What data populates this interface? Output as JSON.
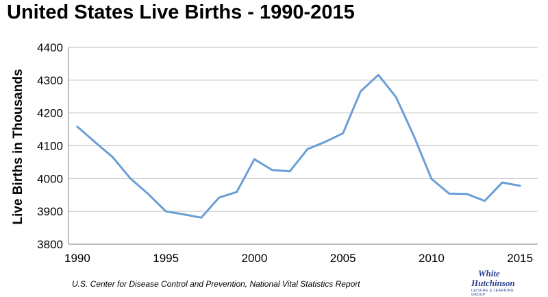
{
  "chart_data": {
    "type": "line",
    "title": "United States Live Births - 1990-2015",
    "ylabel": "Live Births in Thousands",
    "xlabel": "",
    "xlim": [
      1989.5,
      2016
    ],
    "ylim": [
      3800,
      4400
    ],
    "x_ticks": [
      1990,
      1995,
      2000,
      2005,
      2010,
      2015
    ],
    "y_ticks": [
      3800,
      3900,
      4000,
      4100,
      4200,
      4300,
      4400
    ],
    "grid": true,
    "line_color": "#6a9fd6",
    "series": [
      {
        "x": [
          1990,
          1991,
          1992,
          1993,
          1994,
          1995,
          1996,
          1997,
          1998,
          1999,
          2000,
          2001,
          2002,
          2003,
          2004,
          2005,
          2006,
          2007,
          2008,
          2009,
          2010,
          2011,
          2012,
          2013,
          2014,
          2015
        ],
        "values": [
          4158,
          4111,
          4065,
          4000,
          3953,
          3900,
          3891,
          3881,
          3942,
          3959,
          4059,
          4026,
          4022,
          4090,
          4112,
          4138,
          4266,
          4316,
          4248,
          4130,
          3999,
          3954,
          3953,
          3932,
          3988,
          3978
        ]
      }
    ]
  },
  "source": "U.S. Center for Disease Control and Prevention, National Vital Statistics Report",
  "logo": {
    "line1": "White",
    "line2": "Hutchinson",
    "line3": "LEISURE & LEARNING GROUP"
  }
}
